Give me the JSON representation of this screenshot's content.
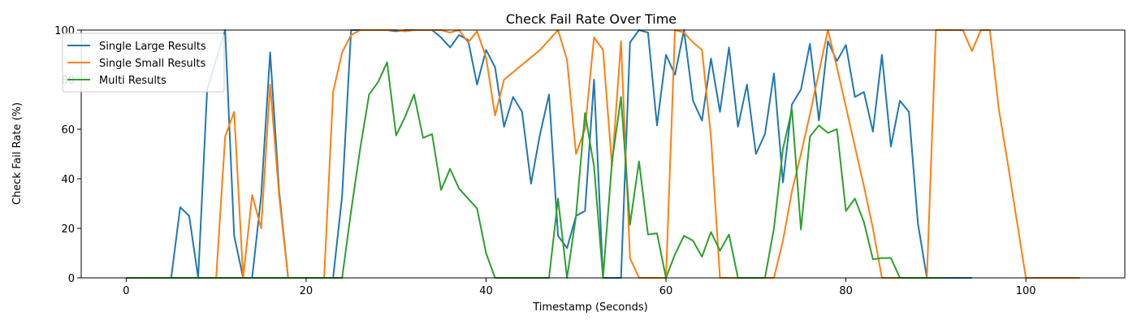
{
  "chart_data": {
    "type": "line",
    "title": "Check Fail Rate Over Time",
    "xlabel": "Timestamp (Seconds)",
    "ylabel": "Check Fail Rate (%)",
    "xlim": [
      -5,
      111
    ],
    "ylim": [
      0,
      100
    ],
    "xticks": [
      0,
      20,
      40,
      60,
      80,
      100
    ],
    "yticks": [
      0,
      20,
      40,
      60,
      80,
      100
    ],
    "grid": false,
    "legend_position": "upper-left",
    "series": [
      {
        "name": "Single Large Results",
        "color": "#1f77b4",
        "x": [
          0,
          1,
          2,
          3,
          4,
          5,
          6,
          7,
          8,
          9,
          10,
          11,
          12,
          13,
          14,
          15,
          16,
          17,
          18,
          19,
          20,
          21,
          22,
          23,
          24,
          25,
          26,
          27,
          28,
          29,
          30,
          31,
          32,
          33,
          34,
          35,
          36,
          37,
          38,
          39,
          40,
          41,
          42,
          43,
          44,
          45,
          46,
          47,
          48,
          49,
          50,
          51,
          52,
          53,
          54,
          55,
          56,
          57,
          58,
          59,
          60,
          61,
          62,
          63,
          64,
          65,
          66,
          67,
          68,
          69,
          70,
          71,
          72,
          73,
          74,
          75,
          76,
          77,
          78,
          79,
          80,
          81,
          82,
          83,
          84,
          85,
          86,
          87,
          88,
          89,
          90,
          91,
          92,
          93,
          94
        ],
        "y": [
          0,
          0,
          0,
          0,
          0,
          0,
          28.5,
          25,
          0,
          76,
          88,
          100,
          17,
          0,
          0,
          33,
          91,
          35,
          0,
          0,
          0,
          0,
          0,
          0,
          33,
          100,
          100,
          100,
          100,
          100,
          99.5,
          100,
          100,
          100,
          100,
          97,
          93,
          98,
          96,
          78,
          92,
          85,
          61,
          73,
          67,
          38,
          58,
          74,
          17,
          12,
          25,
          27,
          80,
          0,
          0,
          0,
          95,
          100,
          99,
          61.5,
          90,
          82,
          100,
          71.5,
          63.5,
          88.5,
          67,
          93,
          61,
          78,
          50,
          58,
          82.5,
          38.5,
          70,
          76,
          94.5,
          63.5,
          95.5,
          87.5,
          94,
          73,
          75,
          59,
          90,
          53,
          71.5,
          67,
          22,
          0,
          0,
          0,
          0,
          0,
          0
        ]
      },
      {
        "name": "Single Small Results",
        "color": "#ff7f0e",
        "x": [
          0,
          1,
          2,
          3,
          4,
          5,
          6,
          7,
          8,
          9,
          10,
          11,
          12,
          13,
          14,
          15,
          16,
          17,
          18,
          19,
          20,
          21,
          22,
          23,
          24,
          25,
          26,
          27,
          28,
          29,
          30,
          31,
          32,
          33,
          34,
          35,
          36,
          37,
          38,
          39,
          40,
          41,
          42,
          43,
          44,
          45,
          46,
          47,
          48,
          49,
          50,
          51,
          52,
          53,
          54,
          55,
          56,
          57,
          58,
          59,
          60,
          61,
          62,
          63,
          64,
          65,
          66,
          67,
          68,
          69,
          70,
          71,
          72,
          73,
          74,
          75,
          76,
          77,
          78,
          79,
          80,
          81,
          82,
          83,
          84,
          85,
          86,
          87,
          88,
          89,
          90,
          91,
          92,
          93,
          94,
          95,
          96,
          97,
          98,
          99,
          100,
          101,
          102,
          103,
          104,
          105,
          106
        ],
        "y": [
          0,
          0,
          0,
          0,
          0,
          0,
          0,
          0,
          0,
          0,
          0,
          57,
          67,
          0,
          33.5,
          20,
          78,
          33,
          0,
          0,
          0,
          0,
          0,
          75,
          91,
          98,
          100,
          100,
          100,
          100,
          100,
          99.5,
          100,
          100,
          100,
          100,
          99,
          100,
          95,
          99.5,
          89,
          65.5,
          80,
          83,
          86,
          89,
          92,
          96,
          100,
          88,
          50,
          60,
          97,
          92,
          45,
          95.5,
          8,
          0,
          0,
          0,
          0,
          100,
          99,
          95,
          92,
          57,
          0,
          0,
          0,
          0,
          0,
          0,
          0,
          15,
          35,
          50,
          66,
          83,
          100,
          85,
          69,
          53,
          37,
          20,
          0,
          0,
          0,
          0,
          0,
          0,
          100,
          100,
          100,
          100,
          91.5,
          100,
          100,
          68,
          46,
          23,
          0,
          0,
          0,
          0,
          0,
          0,
          0
        ]
      },
      {
        "name": "Multi Results",
        "color": "#2ca02c",
        "x": [
          0,
          1,
          2,
          3,
          4,
          5,
          6,
          7,
          8,
          9,
          10,
          11,
          12,
          13,
          14,
          15,
          16,
          17,
          18,
          19,
          20,
          21,
          22,
          23,
          24,
          25,
          26,
          27,
          28,
          29,
          30,
          31,
          32,
          33,
          34,
          35,
          36,
          37,
          38,
          39,
          40,
          41,
          42,
          43,
          44,
          45,
          46,
          47,
          48,
          49,
          50,
          51,
          52,
          53,
          54,
          55,
          56,
          57,
          58,
          59,
          60,
          61,
          62,
          63,
          64,
          65,
          66,
          67,
          68,
          69,
          70,
          71,
          72,
          73,
          74,
          75,
          76,
          77,
          78,
          79,
          80,
          81,
          82,
          83,
          84,
          85,
          86,
          87,
          88,
          89,
          90,
          91
        ],
        "y": [
          0,
          0,
          0,
          0,
          0,
          0,
          0,
          0,
          0,
          0,
          0,
          0,
          0,
          0,
          0,
          0,
          0,
          0,
          0,
          0,
          0,
          0,
          0,
          0,
          0,
          27,
          52,
          74,
          79,
          87,
          57.5,
          65,
          74,
          56.5,
          58,
          35.5,
          44,
          36,
          32,
          28,
          10,
          0,
          0,
          0,
          0,
          0,
          0,
          0,
          32,
          0,
          25,
          66.5,
          45,
          0,
          47,
          73,
          21.5,
          47,
          17.5,
          18,
          0,
          9.5,
          17,
          15,
          8.5,
          18.5,
          11,
          17.5,
          0,
          0,
          0,
          0,
          20,
          52,
          68,
          19.5,
          57,
          61.5,
          58.5,
          60,
          27,
          32,
          22.5,
          7.5,
          8,
          8,
          0,
          0,
          0,
          0,
          0,
          0
        ]
      }
    ]
  }
}
